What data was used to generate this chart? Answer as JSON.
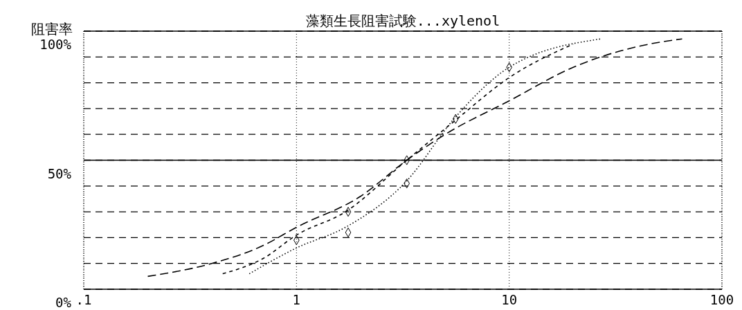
{
  "chart_data": {
    "type": "line",
    "title": "藻類生長阻害試験...xylenol",
    "ylabel": "阻害率",
    "log": "x",
    "xlim": [
      0.1,
      100
    ],
    "xticks": [
      {
        "value": 0.1,
        "label": ".1"
      },
      1,
      10,
      100
    ],
    "ylim": [
      0,
      100
    ],
    "yticks": [
      {
        "value": 0,
        "label": "0%"
      },
      {
        "value": 10,
        "label": null
      },
      {
        "value": 20,
        "label": null
      },
      {
        "value": 30,
        "label": null
      },
      {
        "value": 40,
        "label": null
      },
      {
        "value": 50,
        "label": "50%"
      },
      {
        "value": 60,
        "label": null
      },
      {
        "value": 70,
        "label": null
      },
      {
        "value": 80,
        "label": null
      },
      {
        "value": 90,
        "label": null
      },
      {
        "value": 100,
        "label": "100%"
      }
    ],
    "grid": true,
    "ref_lines": [
      {
        "axis": "y",
        "value": 50,
        "label": null,
        "color": "#000000",
        "line_style": "solid"
      }
    ],
    "series": [
      {
        "color": "#000000",
        "line_style": "dashed",
        "marker": "none",
        "x": [
          0.2,
          0.4,
          0.7,
          1,
          2,
          3.3,
          5,
          10,
          20,
          40,
          65
        ],
        "values": [
          5,
          10,
          17,
          24,
          36,
          50,
          60,
          73,
          86,
          94,
          97
        ]
      },
      {
        "color": "#000000",
        "line_style": "dashed",
        "marker": "none",
        "x": [
          0.45,
          0.7,
          1,
          1.7,
          3.3,
          5.5,
          10,
          20
        ],
        "values": [
          6,
          12,
          21,
          30,
          50,
          65,
          82,
          95
        ]
      },
      {
        "color": "#000000",
        "line_style": "dotted",
        "marker": "none",
        "x": [
          0.6,
          1,
          1.7,
          3.3,
          5.5,
          10,
          27
        ],
        "values": [
          6,
          16,
          24,
          42,
          66,
          86,
          97
        ]
      },
      {
        "type": "scatter",
        "color": "#000000",
        "marker": "diamond",
        "x": [
          1,
          1.75,
          1.75,
          3.3,
          3.3,
          5.6,
          10
        ],
        "values": [
          19,
          30,
          22,
          50,
          41,
          66,
          86
        ]
      }
    ]
  }
}
